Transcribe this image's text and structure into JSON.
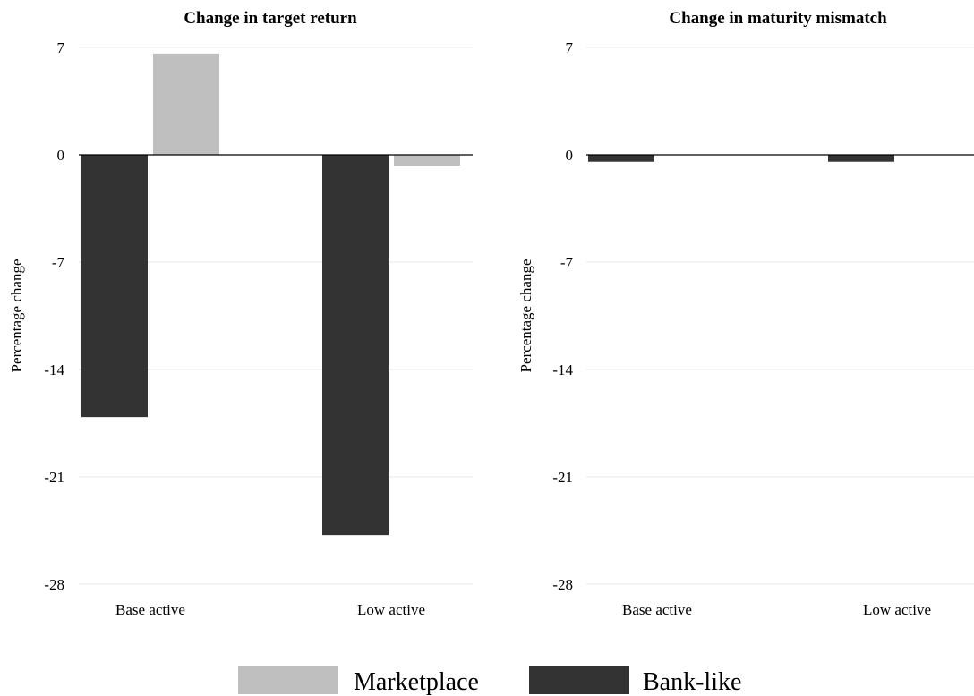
{
  "chart_data": [
    {
      "type": "bar",
      "title": "Change in target return",
      "ylabel": "Percentage change",
      "xlabel": "",
      "categories": [
        "Base active",
        "Low active"
      ],
      "yticks": [
        "7",
        "0",
        "-7",
        "-14",
        "-21",
        "-28"
      ],
      "ylim": [
        -28,
        7
      ],
      "grid": true,
      "series": [
        {
          "name": "Bank-like",
          "color": "#333333",
          "values": [
            -17.1,
            -24.8
          ]
        },
        {
          "name": "Marketplace",
          "color": "#bfbfbf",
          "values": [
            6.6,
            -0.7
          ]
        }
      ]
    },
    {
      "type": "bar",
      "title": "Change in maturity mismatch",
      "ylabel": "Percentage change",
      "xlabel": "",
      "categories": [
        "Base active",
        "Low active"
      ],
      "yticks": [
        "7",
        "0",
        "-7",
        "-14",
        "-21",
        "-28"
      ],
      "ylim": [
        -28,
        7
      ],
      "grid": true,
      "series": [
        {
          "name": "Bank-like",
          "color": "#333333",
          "values": [
            -0.45,
            -0.45
          ]
        },
        {
          "name": "Marketplace",
          "color": "#bfbfbf",
          "values": [
            0,
            0
          ]
        }
      ]
    }
  ],
  "legend": {
    "placement": "bottom",
    "items": [
      {
        "label": "Marketplace",
        "color": "#bfbfbf"
      },
      {
        "label": "Bank-like",
        "color": "#333333"
      }
    ]
  }
}
